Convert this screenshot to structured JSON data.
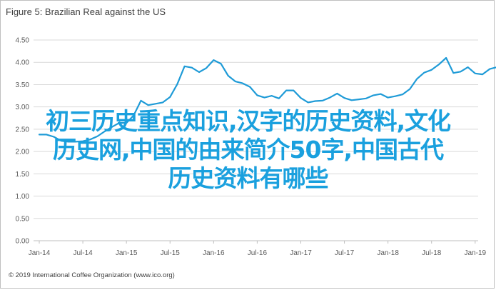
{
  "figure": {
    "title": "Figure 5: Brazilian Real against the US",
    "source": "© 2019 International Coffee Organization (www.ico.org)"
  },
  "overlay": {
    "line1": "初三历史重点知识,汉字的历史资料,文化",
    "line2": "历史网,中国的由来简介50字,中国古代",
    "line3": "历史资料有哪些"
  },
  "colors": {
    "line": "#1f9bd7",
    "grid": "#d9d9d9",
    "overlay": "#1aa0de"
  },
  "chart_data": {
    "type": "line",
    "title": "Figure 5: Brazilian Real against the US",
    "xlabel": "",
    "ylabel": "",
    "ylim": [
      0.0,
      4.5
    ],
    "yticks": [
      "0.00",
      "0.50",
      "1.00",
      "1.50",
      "2.00",
      "2.50",
      "3.00",
      "3.50",
      "4.00",
      "4.50"
    ],
    "ytick_values": [
      0,
      0.5,
      1,
      1.5,
      2,
      2.5,
      3,
      3.5,
      4,
      4.5
    ],
    "xticks": [
      "Jan-14",
      "Jul-14",
      "Jan-15",
      "Jul-15",
      "Jan-16",
      "Jul-16",
      "Jan-17",
      "Jul-17",
      "Jan-18",
      "Jul-18",
      "Jan-19"
    ],
    "x": [
      "2014-01",
      "2014-02",
      "2014-03",
      "2014-04",
      "2014-05",
      "2014-06",
      "2014-07",
      "2014-08",
      "2014-09",
      "2014-10",
      "2014-11",
      "2014-12",
      "2015-01",
      "2015-02",
      "2015-03",
      "2015-04",
      "2015-05",
      "2015-06",
      "2015-07",
      "2015-08",
      "2015-09",
      "2015-10",
      "2015-11",
      "2015-12",
      "2016-01",
      "2016-02",
      "2016-03",
      "2016-04",
      "2016-05",
      "2016-06",
      "2016-07",
      "2016-08",
      "2016-09",
      "2016-10",
      "2016-11",
      "2016-12",
      "2017-01",
      "2017-02",
      "2017-03",
      "2017-04",
      "2017-05",
      "2017-06",
      "2017-07",
      "2017-08",
      "2017-09",
      "2017-10",
      "2017-11",
      "2017-12",
      "2018-01",
      "2018-02",
      "2018-03",
      "2018-04",
      "2018-05",
      "2018-06",
      "2018-07",
      "2018-08",
      "2018-09",
      "2018-10",
      "2018-11",
      "2018-12",
      "2019-01",
      "2019-02",
      "2019-03",
      "2019-04"
    ],
    "series": [
      {
        "name": "",
        "values": [
          2.38,
          2.38,
          2.33,
          2.24,
          2.22,
          2.22,
          2.23,
          2.27,
          2.34,
          2.45,
          2.55,
          2.64,
          2.64,
          2.81,
          3.14,
          3.04,
          3.07,
          3.1,
          3.22,
          3.51,
          3.91,
          3.88,
          3.78,
          3.87,
          4.05,
          3.97,
          3.7,
          3.57,
          3.53,
          3.45,
          3.26,
          3.21,
          3.25,
          3.19,
          3.37,
          3.37,
          3.2,
          3.1,
          3.13,
          3.14,
          3.21,
          3.3,
          3.2,
          3.15,
          3.17,
          3.19,
          3.26,
          3.29,
          3.21,
          3.24,
          3.28,
          3.4,
          3.63,
          3.77,
          3.83,
          3.95,
          4.1,
          3.76,
          3.79,
          3.89,
          3.75,
          3.73,
          3.85,
          3.89
        ]
      }
    ]
  }
}
